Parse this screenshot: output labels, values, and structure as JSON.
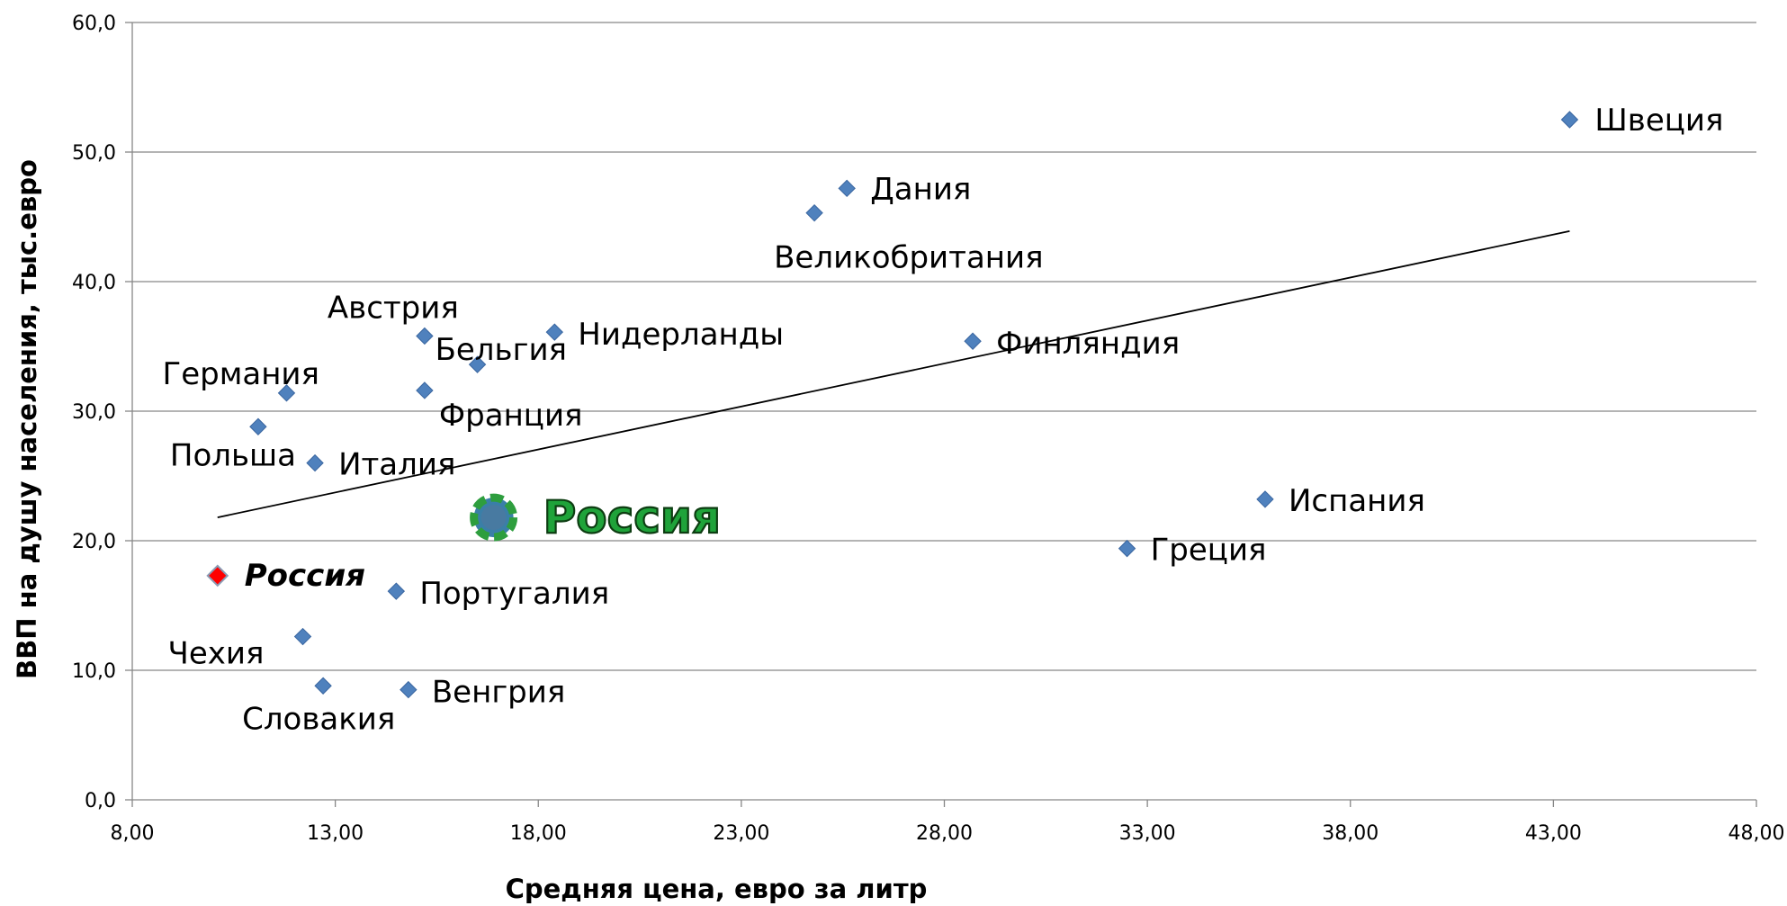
{
  "chart_data": {
    "type": "scatter",
    "title": "",
    "xlabel": "Средняя цена, евро за литр",
    "ylabel": "ВВП на душу населения, тыс.евро",
    "xlim": [
      8,
      48
    ],
    "ylim": [
      0,
      60
    ],
    "x_ticks": [
      "8,00",
      "13,00",
      "18,00",
      "23,00",
      "28,00",
      "33,00",
      "38,00",
      "43,00",
      "48,00"
    ],
    "y_ticks": [
      "0,0",
      "10,0",
      "20,0",
      "30,0",
      "40,0",
      "50,0",
      "60,0"
    ],
    "grid": "horizontal",
    "legend": "none",
    "marker_color": "#4f81bd",
    "trendline": {
      "type": "linear",
      "from": [
        10.1,
        21.8
      ],
      "to": [
        43.4,
        43.9
      ],
      "color": "#000000"
    },
    "points": [
      {
        "x": 43.4,
        "y": 52.5,
        "label": "Швеция"
      },
      {
        "x": 25.6,
        "y": 47.2,
        "label": "Дания"
      },
      {
        "x": 24.8,
        "y": 45.3,
        "label": "Великобритания"
      },
      {
        "x": 15.2,
        "y": 35.8,
        "label": "Австрия"
      },
      {
        "x": 16.5,
        "y": 33.6,
        "label": "Бельгия"
      },
      {
        "x": 18.4,
        "y": 36.1,
        "label": "Нидерланды"
      },
      {
        "x": 28.7,
        "y": 35.4,
        "label": "Финляндия"
      },
      {
        "x": 11.8,
        "y": 31.4,
        "label": "Германия"
      },
      {
        "x": 15.2,
        "y": 31.6,
        "label": "Франция"
      },
      {
        "x": 11.1,
        "y": 28.8,
        "label": "Польша"
      },
      {
        "x": 12.5,
        "y": 26.0,
        "label": "Италия"
      },
      {
        "x": 35.9,
        "y": 23.2,
        "label": "Испания"
      },
      {
        "x": 32.5,
        "y": 19.4,
        "label": "Греция"
      },
      {
        "x": 14.5,
        "y": 16.1,
        "label": "Португалия"
      },
      {
        "x": 12.2,
        "y": 12.6,
        "label": "Чехия"
      },
      {
        "x": 12.7,
        "y": 8.8,
        "label": "Словакия"
      },
      {
        "x": 14.8,
        "y": 8.5,
        "label": "Венгрия"
      }
    ],
    "highlight_points": [
      {
        "x": 10.1,
        "y": 17.3,
        "label": "Россия",
        "color": "#ff0000",
        "style": "bold-italic"
      },
      {
        "x": 16.9,
        "y": 21.8,
        "label": "Россия",
        "color": "#2e9e3e",
        "style": "large-outlined"
      }
    ]
  }
}
